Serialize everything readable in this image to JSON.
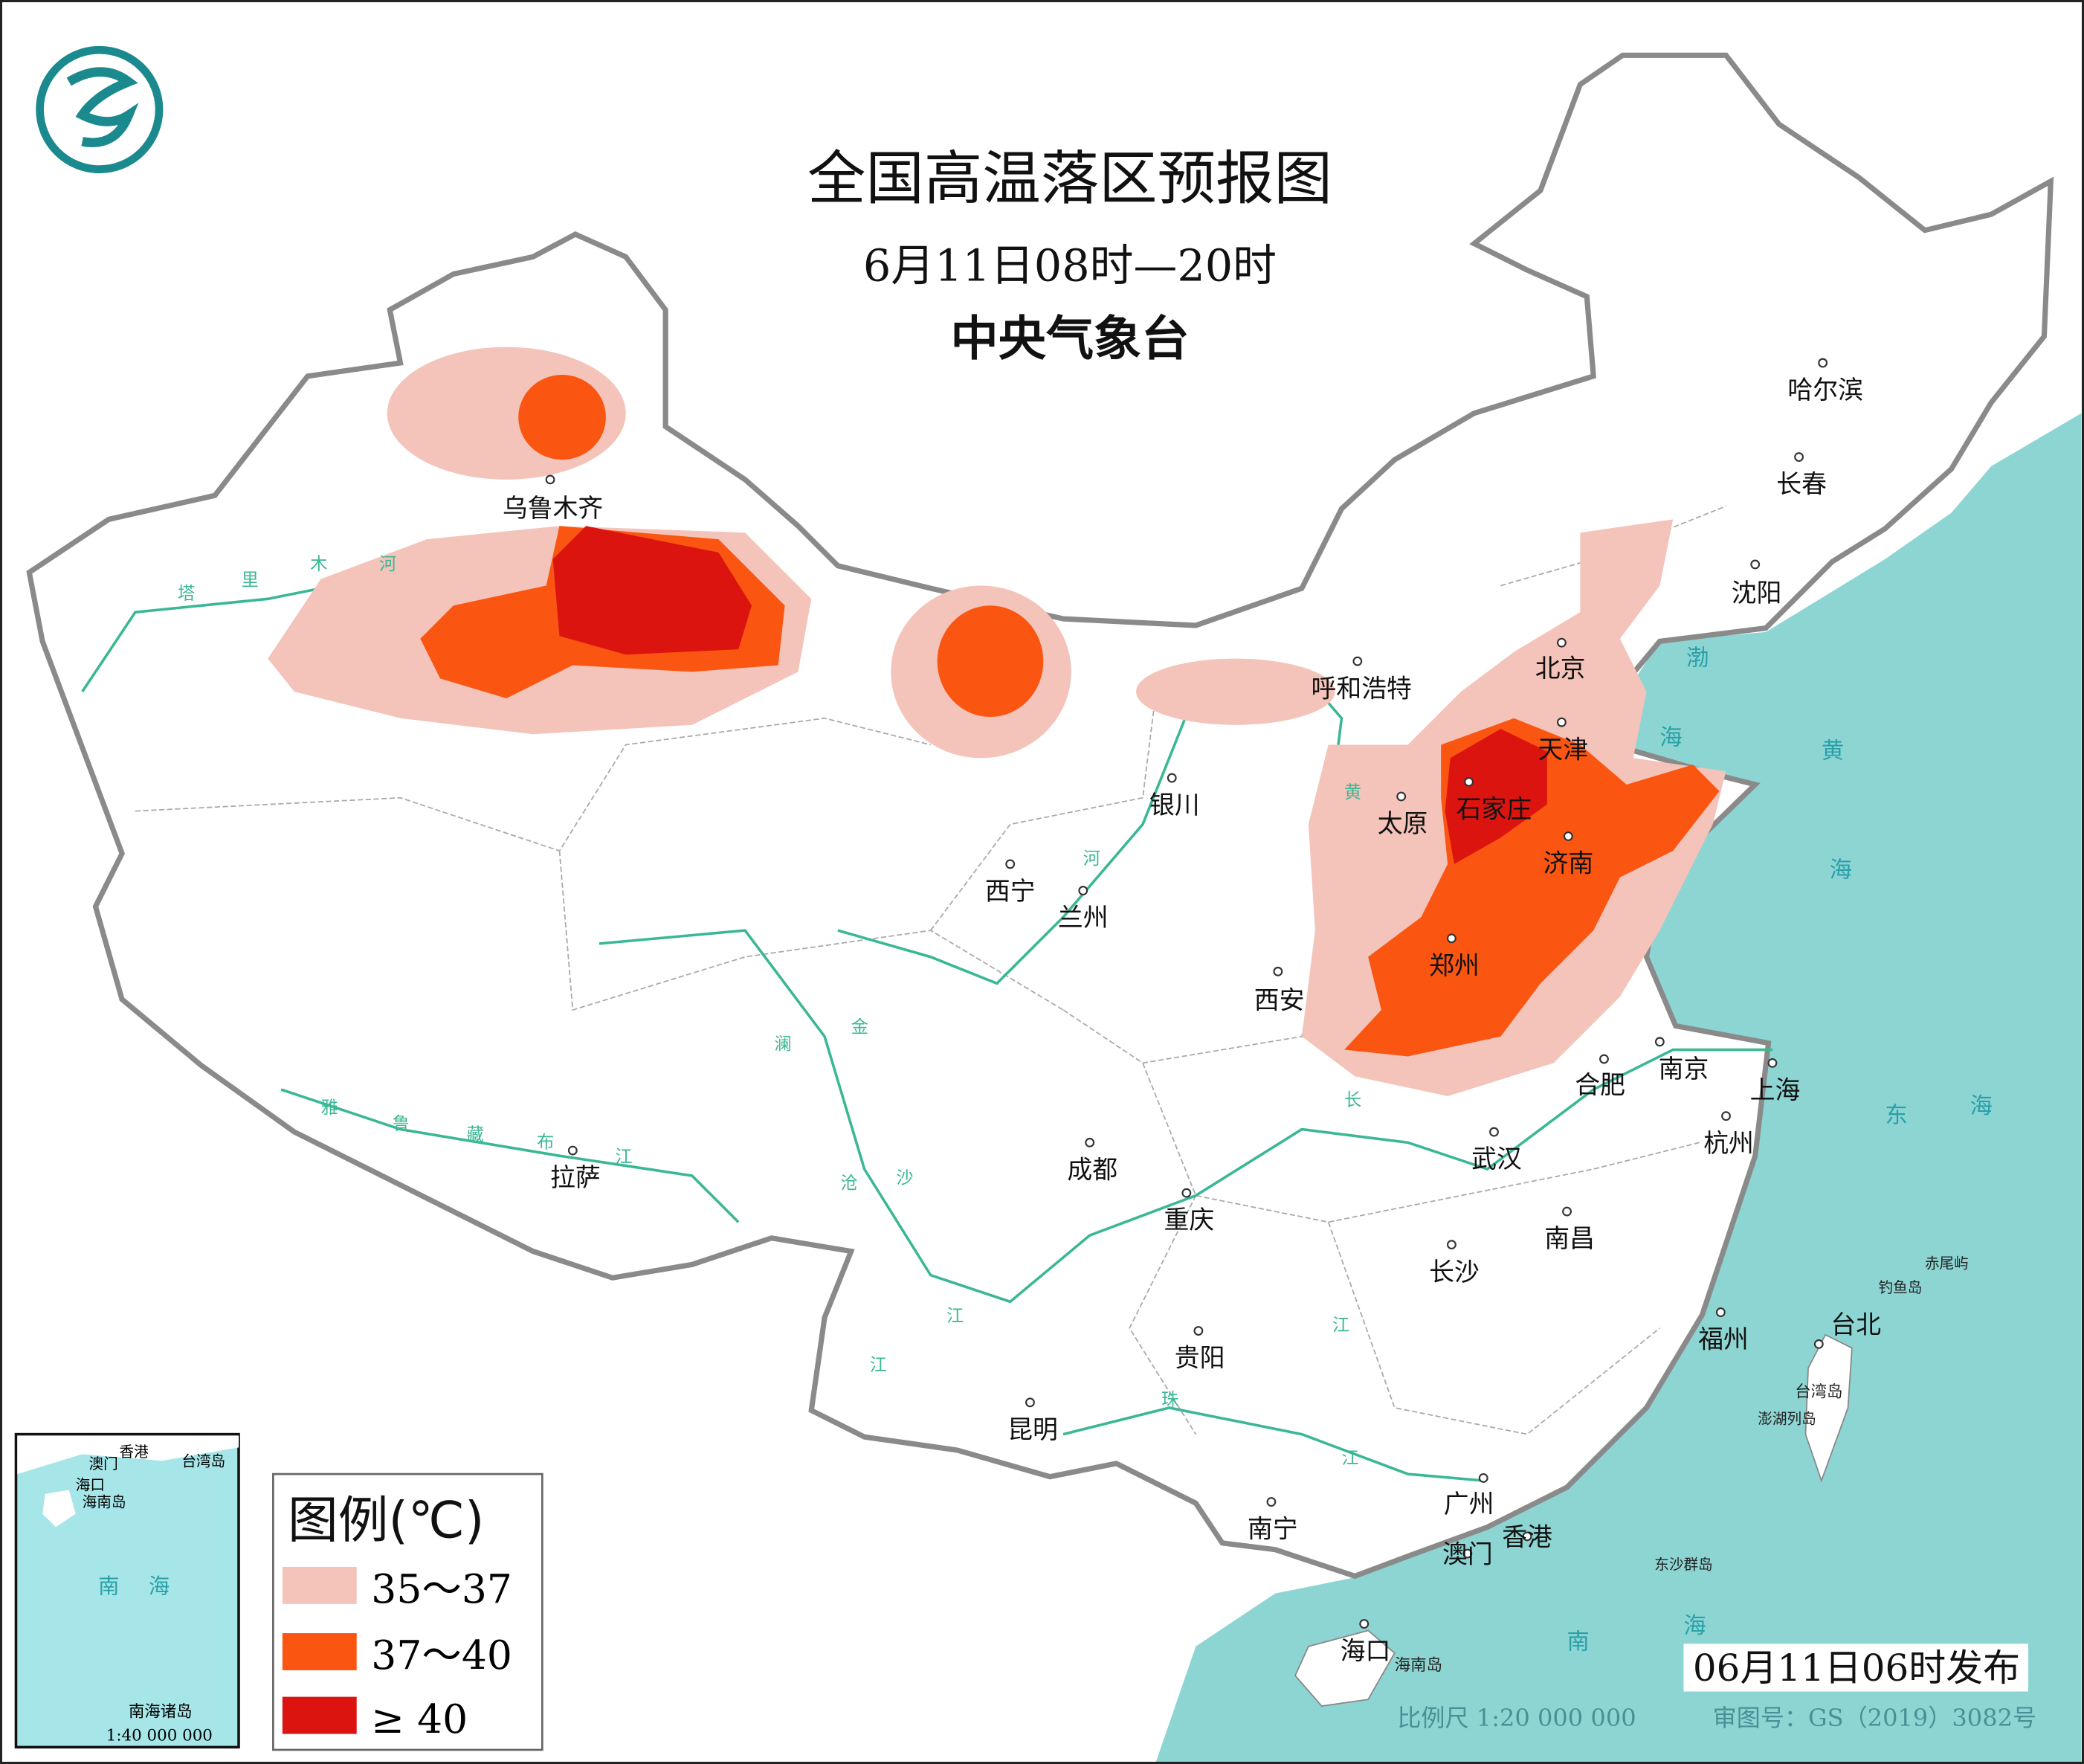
{
  "header": {
    "title": "全国高温落区预报图",
    "time_range": "6月11日08时—20时",
    "agency": "中央气象台"
  },
  "cities": [
    "乌鲁木齐",
    "拉萨",
    "西宁",
    "兰州",
    "银川",
    "呼和浩特",
    "北京",
    "天津",
    "石家庄",
    "太原",
    "济南",
    "郑州",
    "西安",
    "合肥",
    "南京",
    "上海",
    "杭州",
    "武汉",
    "成都",
    "重庆",
    "长沙",
    "南昌",
    "福州",
    "台北",
    "贵阳",
    "昆明",
    "南宁",
    "广州",
    "香港",
    "澳门",
    "海口",
    "哈尔滨",
    "长春",
    "沈阳"
  ],
  "seas": [
    "渤",
    "海",
    "黄",
    "海",
    "东",
    "海",
    "南",
    "海"
  ],
  "rivers": [
    "塔",
    "里",
    "木",
    "河",
    "雅",
    "鲁",
    "藏",
    "布",
    "江",
    "黄",
    "河",
    "长",
    "江",
    "澜",
    "沧",
    "江",
    "金",
    "沙",
    "江",
    "珠",
    "江"
  ],
  "islands": [
    "台湾岛",
    "海南岛",
    "赤尾屿",
    "钓鱼岛",
    "澎湖列岛",
    "东沙群岛"
  ],
  "inset": {
    "labels": [
      "香港",
      "澳门",
      "台湾岛",
      "海口",
      "海南岛",
      "南",
      "海",
      "南海诸岛"
    ],
    "scale": "1:40 000 000"
  },
  "legend": {
    "title": "图例(℃)",
    "items": [
      {
        "label": "35～37",
        "color": "#f4c3b9"
      },
      {
        "label": "37～40",
        "color": "#fb5512"
      },
      {
        "label": "≥ 40",
        "color": "#dc1410"
      }
    ]
  },
  "footer": {
    "issued": "06月11日06时发布",
    "scale": "比例尺 1:20 000 000",
    "map_number": "审图号：GS（2019）3082号"
  },
  "colors": {
    "sea": "#8dd5d3",
    "land": "#ffffff",
    "river": "#3ab795",
    "border": "#8a8a8a"
  }
}
